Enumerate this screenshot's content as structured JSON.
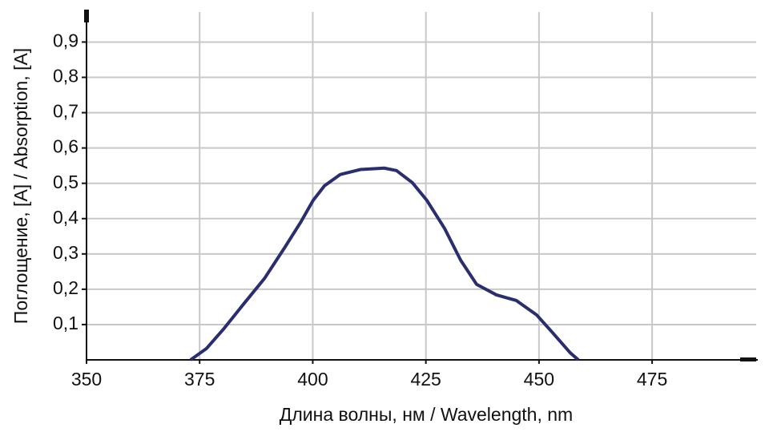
{
  "chart_data": {
    "type": "line",
    "x_label": "Длина волны, нм / Wavelength, nm",
    "y_label": "Поглощение, [A] / Absorption, [A]",
    "x": [
      373.0,
      376.5,
      380.4,
      384.9,
      389.3,
      393.7,
      397.3,
      400.1,
      402.6,
      406.1,
      410.5,
      415.8,
      418.5,
      422.0,
      425.2,
      429.1,
      432.7,
      436.2,
      440.6,
      445.0,
      449.5,
      453.0,
      456.9,
      458.7
    ],
    "series": [
      {
        "color": "#2b2e6e",
        "values": [
          0,
          0.032,
          0.089,
          0.161,
          0.23,
          0.316,
          0.389,
          0.452,
          0.493,
          0.525,
          0.539,
          0.543,
          0.536,
          0.502,
          0.452,
          0.373,
          0.282,
          0.214,
          0.184,
          0.168,
          0.127,
          0.077,
          0.02,
          0
        ]
      }
    ],
    "xlim": [
      350,
      498
    ],
    "ylim": [
      0,
      0.985
    ],
    "xticks": [
      350,
      375,
      400,
      425,
      450,
      475
    ],
    "yticks": [
      {
        "value": 0.1,
        "label": "0,1"
      },
      {
        "value": 0.2,
        "label": "0,2"
      },
      {
        "value": 0.3,
        "label": "0,3"
      },
      {
        "value": 0.4,
        "label": "0,4"
      },
      {
        "value": 0.5,
        "label": "0,5"
      },
      {
        "value": 0.6,
        "label": "0,6"
      },
      {
        "value": 0.7,
        "label": "0,7"
      },
      {
        "value": 0.8,
        "label": "0,8"
      },
      {
        "value": 0.9,
        "label": "0,9"
      }
    ],
    "grid": true
  }
}
